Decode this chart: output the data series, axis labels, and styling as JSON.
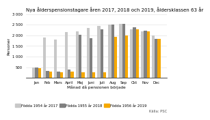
{
  "title": "Nya ålderspensionstagare åren 2017, 2018 och 2019, åldersklassen 63 år",
  "ylabel": "Personer",
  "xlabel": "Månad då pensionen började",
  "source": "Källa: PSC",
  "months": [
    "Jan",
    "Feb",
    "Mars",
    "April",
    "Maj",
    "Juni",
    "Juli",
    "Aug",
    "Sep",
    "Okt",
    "Nov",
    "Dec"
  ],
  "series": {
    "Födda 1954 år 2017": [
      500,
      1900,
      1800,
      2150,
      2200,
      2350,
      2450,
      2500,
      2550,
      2300,
      2200,
      2000
    ],
    "Födda 1955 år 2018": [
      480,
      330,
      300,
      380,
      2030,
      1860,
      2270,
      2500,
      2540,
      2380,
      2220,
      1850
    ],
    "Födda 1956 år 2019": [
      450,
      300,
      270,
      290,
      260,
      270,
      260,
      1920,
      2000,
      2280,
      2200,
      1830
    ]
  },
  "colors": {
    "Födda 1954 år 2017": "#c8c8c8",
    "Födda 1955 år 2018": "#808080",
    "Födda 1956 år 2019": "#f5a800"
  },
  "ylim": [
    0,
    3000
  ],
  "yticks": [
    500,
    1000,
    1500,
    2000,
    2500,
    3000
  ],
  "title_fontsize": 5.0,
  "label_fontsize": 4.2,
  "tick_fontsize": 3.8,
  "legend_fontsize": 3.8
}
